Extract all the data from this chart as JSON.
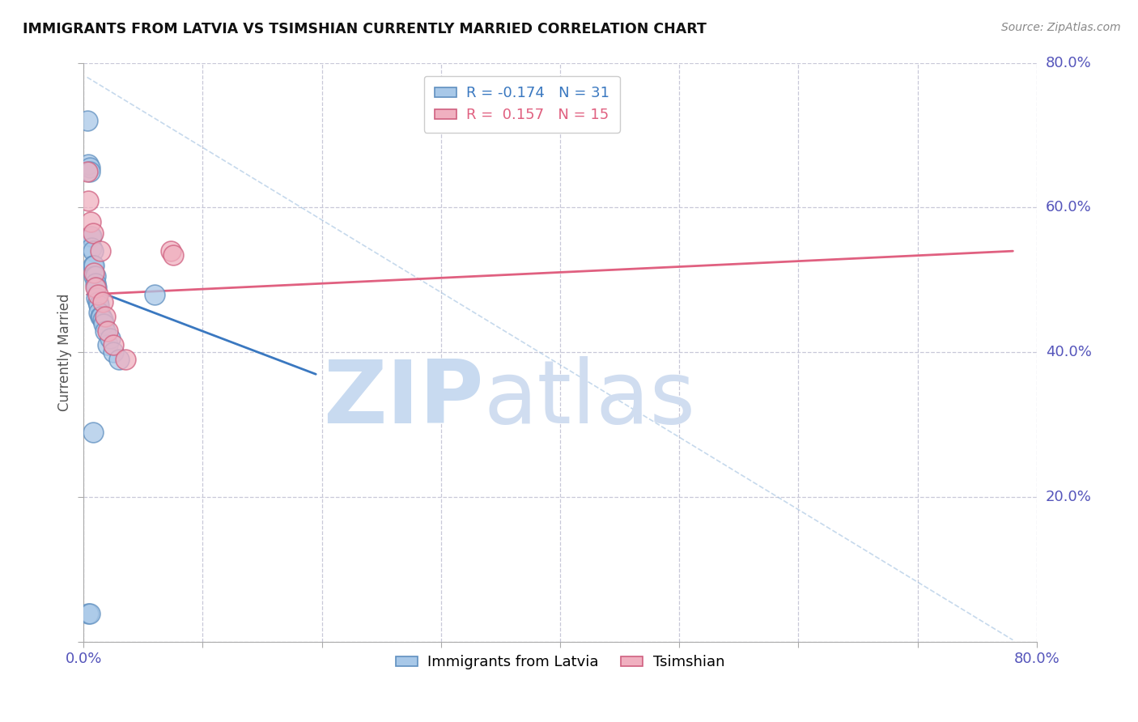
{
  "title": "IMMIGRANTS FROM LATVIA VS TSIMSHIAN CURRENTLY MARRIED CORRELATION CHART",
  "source_text": "Source: ZipAtlas.com",
  "ylabel": "Currently Married",
  "xlim": [
    0.0,
    0.8
  ],
  "ylim": [
    0.0,
    0.8
  ],
  "grid_color": "#c8c8d8",
  "background_color": "#ffffff",
  "blue_color": "#a8c8e8",
  "pink_color": "#f0b0c0",
  "blue_edge_color": "#6090c0",
  "pink_edge_color": "#d06080",
  "legend_R_blue": "-0.174",
  "legend_N_blue": "31",
  "legend_R_pink": "0.157",
  "legend_N_pink": "15",
  "legend_label_blue": "Immigrants from Latvia",
  "legend_label_pink": "Tsimshian",
  "blue_scatter_x": [
    0.003,
    0.004,
    0.005,
    0.005,
    0.006,
    0.007,
    0.007,
    0.008,
    0.008,
    0.009,
    0.009,
    0.01,
    0.01,
    0.011,
    0.011,
    0.012,
    0.013,
    0.013,
    0.014,
    0.015,
    0.016,
    0.017,
    0.018,
    0.02,
    0.022,
    0.025,
    0.03,
    0.06,
    0.004,
    0.005,
    0.008
  ],
  "blue_scatter_y": [
    0.72,
    0.66,
    0.655,
    0.65,
    0.56,
    0.56,
    0.545,
    0.54,
    0.52,
    0.52,
    0.505,
    0.505,
    0.495,
    0.49,
    0.475,
    0.47,
    0.465,
    0.455,
    0.45,
    0.45,
    0.445,
    0.44,
    0.43,
    0.41,
    0.42,
    0.4,
    0.39,
    0.48,
    0.04,
    0.04,
    0.29
  ],
  "pink_scatter_x": [
    0.003,
    0.004,
    0.006,
    0.008,
    0.009,
    0.01,
    0.012,
    0.014,
    0.016,
    0.018,
    0.02,
    0.025,
    0.035,
    0.073,
    0.075
  ],
  "pink_scatter_y": [
    0.65,
    0.61,
    0.58,
    0.565,
    0.51,
    0.49,
    0.48,
    0.54,
    0.47,
    0.45,
    0.43,
    0.41,
    0.39,
    0.54,
    0.535
  ],
  "blue_trend_x": [
    0.003,
    0.195
  ],
  "blue_trend_y": [
    0.49,
    0.37
  ],
  "pink_trend_x": [
    0.003,
    0.78
  ],
  "pink_trend_y": [
    0.48,
    0.54
  ],
  "diag_line_x": [
    0.003,
    0.78
  ],
  "diag_line_y": [
    0.78,
    0.003
  ],
  "ytick_right_labels": [
    "20.0%",
    "40.0%",
    "60.0%",
    "80.0%"
  ],
  "ytick_right_values": [
    0.2,
    0.4,
    0.6,
    0.8
  ],
  "watermark_zip_color": "#c8daf0",
  "watermark_atlas_color": "#c8daf0"
}
